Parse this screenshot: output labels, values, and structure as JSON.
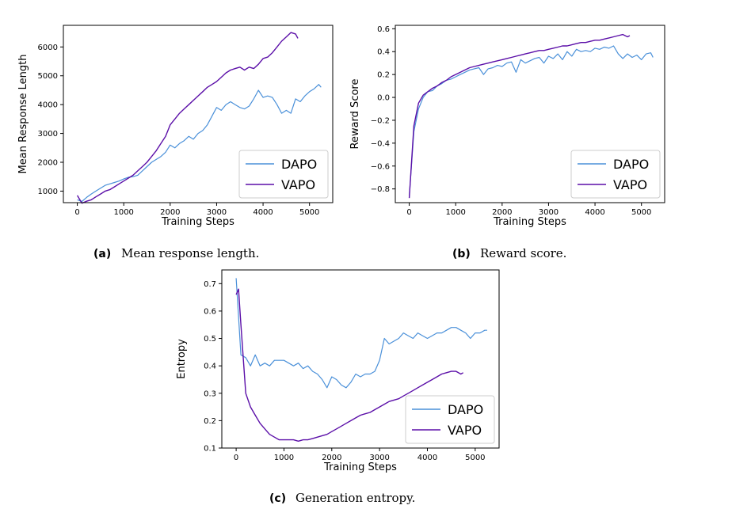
{
  "colors": {
    "dapo": "#4a90d9",
    "vapo": "#5b0fa8"
  },
  "chart_data": [
    {
      "type": "line",
      "caption_tag": "(a)",
      "caption": "Mean response length.",
      "xlabel": "Training Steps",
      "ylabel": "Mean Response Length",
      "xlim": [
        -300,
        5500
      ],
      "ylim": [
        600,
        6750
      ],
      "xticks": [
        0,
        1000,
        2000,
        3000,
        4000,
        5000
      ],
      "yticks": [
        1000,
        2000,
        3000,
        4000,
        5000,
        6000
      ],
      "legend": "bottom-right",
      "series": [
        {
          "name": "DAPO",
          "x": [
            0,
            100,
            200,
            300,
            400,
            500,
            600,
            700,
            800,
            900,
            1000,
            1100,
            1200,
            1300,
            1400,
            1500,
            1600,
            1700,
            1800,
            1900,
            2000,
            2100,
            2200,
            2300,
            2400,
            2500,
            2600,
            2700,
            2800,
            2900,
            3000,
            3100,
            3200,
            3300,
            3400,
            3500,
            3600,
            3700,
            3800,
            3900,
            4000,
            4100,
            4200,
            4300,
            4400,
            4500,
            4600,
            4700,
            4800,
            4900,
            5000,
            5100,
            5200,
            5250
          ],
          "y": [
            700,
            640,
            780,
            900,
            1000,
            1100,
            1200,
            1250,
            1300,
            1350,
            1420,
            1480,
            1500,
            1550,
            1700,
            1850,
            2000,
            2100,
            2200,
            2350,
            2600,
            2500,
            2650,
            2750,
            2900,
            2800,
            3000,
            3100,
            3300,
            3600,
            3900,
            3800,
            4000,
            4100,
            4000,
            3900,
            3850,
            3950,
            4200,
            4500,
            4250,
            4300,
            4250,
            4000,
            3700,
            3800,
            3700,
            4200,
            4100,
            4300,
            4450,
            4550,
            4700,
            4600
          ]
        },
        {
          "name": "VAPO",
          "x": [
            0,
            100,
            200,
            300,
            400,
            500,
            600,
            700,
            800,
            900,
            1000,
            1100,
            1200,
            1300,
            1400,
            1500,
            1600,
            1700,
            1800,
            1900,
            2000,
            2100,
            2200,
            2300,
            2400,
            2500,
            2600,
            2700,
            2800,
            2900,
            3000,
            3100,
            3200,
            3300,
            3400,
            3500,
            3600,
            3700,
            3800,
            3900,
            4000,
            4100,
            4200,
            4300,
            4400,
            4500,
            4600,
            4700,
            4750
          ],
          "y": [
            850,
            580,
            650,
            700,
            800,
            900,
            1000,
            1050,
            1150,
            1250,
            1350,
            1450,
            1550,
            1700,
            1850,
            2000,
            2200,
            2400,
            2650,
            2900,
            3300,
            3500,
            3700,
            3850,
            4000,
            4150,
            4300,
            4450,
            4600,
            4700,
            4800,
            4950,
            5100,
            5200,
            5250,
            5300,
            5200,
            5300,
            5250,
            5400,
            5600,
            5650,
            5800,
            6000,
            6200,
            6350,
            6500,
            6450,
            6300
          ]
        }
      ]
    },
    {
      "type": "line",
      "caption_tag": "(b)",
      "caption": "Reward score.",
      "xlabel": "Training Steps",
      "ylabel": "Reward Score",
      "xlim": [
        -300,
        5500
      ],
      "ylim": [
        -0.92,
        0.63
      ],
      "xticks": [
        0,
        1000,
        2000,
        3000,
        4000,
        5000
      ],
      "yticks": [
        -0.8,
        -0.6,
        -0.4,
        -0.2,
        0.0,
        0.2,
        0.4,
        0.6
      ],
      "ytick_labels": [
        "−0.8",
        "−0.6",
        "−0.4",
        "−0.2",
        "0.0",
        "0.2",
        "0.4",
        "0.6"
      ],
      "legend": "bottom-right",
      "series": [
        {
          "name": "DAPO",
          "x": [
            0,
            100,
            200,
            300,
            400,
            500,
            600,
            700,
            800,
            900,
            1000,
            1100,
            1200,
            1300,
            1400,
            1500,
            1600,
            1700,
            1800,
            1900,
            2000,
            2100,
            2200,
            2300,
            2400,
            2500,
            2600,
            2700,
            2800,
            2900,
            3000,
            3100,
            3200,
            3300,
            3400,
            3500,
            3600,
            3700,
            3800,
            3900,
            4000,
            4100,
            4200,
            4300,
            4400,
            4500,
            4600,
            4700,
            4800,
            4900,
            5000,
            5100,
            5200,
            5250
          ],
          "y": [
            -0.87,
            -0.3,
            -0.1,
            0.0,
            0.05,
            0.06,
            0.1,
            0.12,
            0.15,
            0.16,
            0.18,
            0.2,
            0.22,
            0.24,
            0.25,
            0.26,
            0.2,
            0.25,
            0.26,
            0.28,
            0.27,
            0.3,
            0.31,
            0.22,
            0.33,
            0.3,
            0.32,
            0.34,
            0.35,
            0.3,
            0.36,
            0.34,
            0.38,
            0.33,
            0.4,
            0.36,
            0.42,
            0.4,
            0.41,
            0.4,
            0.43,
            0.42,
            0.44,
            0.43,
            0.45,
            0.38,
            0.34,
            0.38,
            0.35,
            0.37,
            0.33,
            0.38,
            0.39,
            0.35
          ]
        },
        {
          "name": "VAPO",
          "x": [
            0,
            100,
            200,
            300,
            400,
            500,
            600,
            700,
            800,
            900,
            1000,
            1100,
            1200,
            1300,
            1400,
            1500,
            1600,
            1700,
            1800,
            1900,
            2000,
            2100,
            2200,
            2300,
            2400,
            2500,
            2600,
            2700,
            2800,
            2900,
            3000,
            3100,
            3200,
            3300,
            3400,
            3500,
            3600,
            3700,
            3800,
            3900,
            4000,
            4100,
            4200,
            4300,
            4400,
            4500,
            4600,
            4700,
            4750
          ],
          "y": [
            -0.88,
            -0.25,
            -0.05,
            0.02,
            0.05,
            0.08,
            0.1,
            0.13,
            0.15,
            0.18,
            0.2,
            0.22,
            0.24,
            0.26,
            0.27,
            0.28,
            0.29,
            0.3,
            0.31,
            0.32,
            0.33,
            0.34,
            0.35,
            0.36,
            0.37,
            0.38,
            0.39,
            0.4,
            0.41,
            0.41,
            0.42,
            0.43,
            0.44,
            0.45,
            0.45,
            0.46,
            0.47,
            0.48,
            0.48,
            0.49,
            0.5,
            0.5,
            0.51,
            0.52,
            0.53,
            0.54,
            0.55,
            0.53,
            0.54
          ]
        }
      ]
    },
    {
      "type": "line",
      "caption_tag": "(c)",
      "caption": "Generation entropy.",
      "xlabel": "Training Steps",
      "ylabel": "Entropy",
      "xlim": [
        -300,
        5500
      ],
      "ylim": [
        0.1,
        0.75
      ],
      "xticks": [
        0,
        1000,
        2000,
        3000,
        4000,
        5000
      ],
      "yticks": [
        0.1,
        0.2,
        0.3,
        0.4,
        0.5,
        0.6,
        0.7
      ],
      "legend": "bottom-right",
      "series": [
        {
          "name": "DAPO",
          "x": [
            0,
            100,
            200,
            300,
            400,
            500,
            600,
            700,
            800,
            900,
            1000,
            1100,
            1200,
            1300,
            1400,
            1500,
            1600,
            1700,
            1800,
            1900,
            2000,
            2100,
            2200,
            2300,
            2400,
            2500,
            2600,
            2700,
            2800,
            2900,
            3000,
            3100,
            3200,
            3300,
            3400,
            3500,
            3600,
            3700,
            3800,
            3900,
            4000,
            4100,
            4200,
            4300,
            4400,
            4500,
            4600,
            4700,
            4800,
            4900,
            5000,
            5100,
            5200,
            5250
          ],
          "y": [
            0.72,
            0.44,
            0.43,
            0.4,
            0.44,
            0.4,
            0.41,
            0.4,
            0.42,
            0.42,
            0.42,
            0.41,
            0.4,
            0.41,
            0.39,
            0.4,
            0.38,
            0.37,
            0.35,
            0.32,
            0.36,
            0.35,
            0.33,
            0.32,
            0.34,
            0.37,
            0.36,
            0.37,
            0.37,
            0.38,
            0.42,
            0.5,
            0.48,
            0.49,
            0.5,
            0.52,
            0.51,
            0.5,
            0.52,
            0.51,
            0.5,
            0.51,
            0.52,
            0.52,
            0.53,
            0.54,
            0.54,
            0.53,
            0.52,
            0.5,
            0.52,
            0.52,
            0.53,
            0.53
          ]
        },
        {
          "name": "VAPO",
          "x": [
            0,
            50,
            100,
            200,
            300,
            400,
            500,
            600,
            700,
            800,
            900,
            1000,
            1100,
            1200,
            1300,
            1400,
            1500,
            1600,
            1700,
            1800,
            1900,
            2000,
            2100,
            2200,
            2300,
            2400,
            2500,
            2600,
            2700,
            2800,
            2900,
            3000,
            3100,
            3200,
            3300,
            3400,
            3500,
            3600,
            3700,
            3800,
            3900,
            4000,
            4100,
            4200,
            4300,
            4400,
            4500,
            4600,
            4700,
            4750
          ],
          "y": [
            0.66,
            0.68,
            0.55,
            0.3,
            0.25,
            0.22,
            0.19,
            0.17,
            0.15,
            0.14,
            0.13,
            0.13,
            0.13,
            0.13,
            0.125,
            0.13,
            0.13,
            0.135,
            0.14,
            0.145,
            0.15,
            0.16,
            0.17,
            0.18,
            0.19,
            0.2,
            0.21,
            0.22,
            0.225,
            0.23,
            0.24,
            0.25,
            0.26,
            0.27,
            0.275,
            0.28,
            0.29,
            0.3,
            0.31,
            0.32,
            0.33,
            0.34,
            0.35,
            0.36,
            0.37,
            0.375,
            0.38,
            0.38,
            0.37,
            0.375
          ]
        }
      ]
    }
  ]
}
